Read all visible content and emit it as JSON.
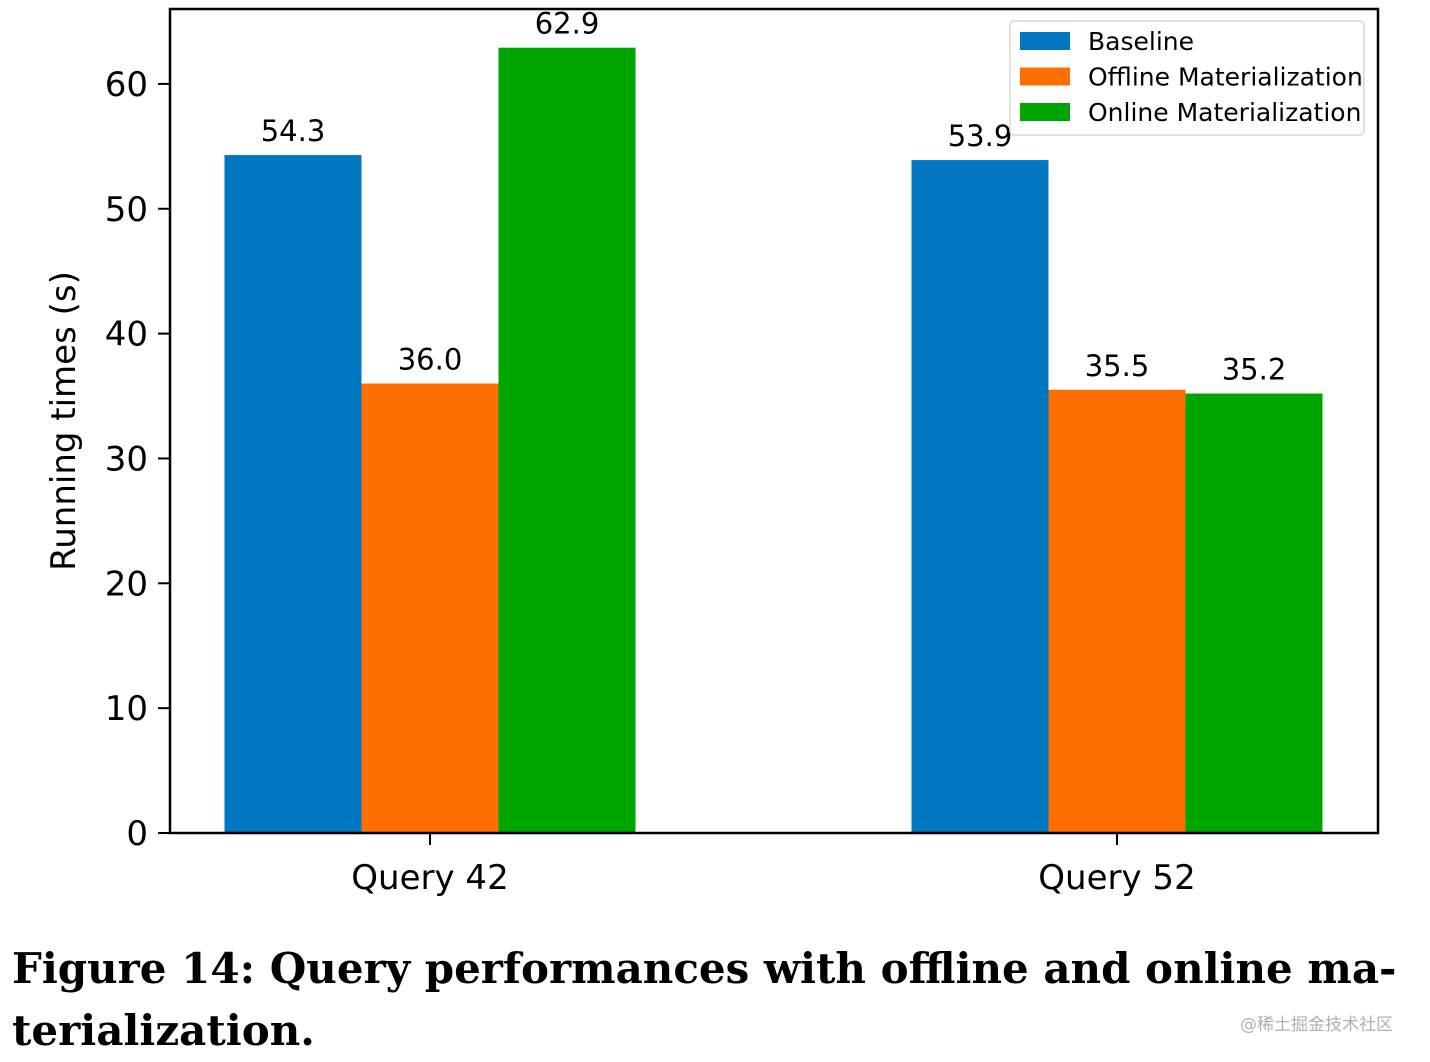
{
  "chart_data": {
    "type": "bar",
    "categories": [
      "Query 42",
      "Query 52"
    ],
    "series": [
      {
        "name": "Baseline",
        "color": "#0077c0",
        "values": [
          54.3,
          53.9
        ],
        "labels": [
          "54.3",
          "53.9"
        ]
      },
      {
        "name": "Offline Materialization",
        "color": "#ff6e00",
        "values": [
          36.0,
          35.5
        ],
        "labels": [
          "36.0",
          "35.5"
        ]
      },
      {
        "name": "Online Materialization",
        "color": "#00a600",
        "values": [
          62.9,
          35.2
        ],
        "labels": [
          "62.9",
          "35.2"
        ]
      }
    ],
    "title": "",
    "xlabel": "",
    "ylabel": "Running times (s)",
    "ylim": [
      0,
      66
    ],
    "yticks": [
      0,
      10,
      20,
      30,
      40,
      50,
      60
    ],
    "grid": false,
    "legend": "top-right"
  },
  "caption": "Figure 14: Query performances with offline and online ma-terialization.",
  "watermark": "@稀土掘金技术社区"
}
